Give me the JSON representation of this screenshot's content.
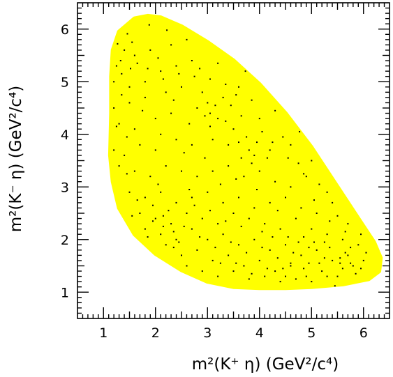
{
  "chart_data": {
    "type": "scatter",
    "xlabel": "m²(K⁺ η) (GeV²/c⁴)",
    "ylabel": "m²(K⁻ η) (GeV²/c⁴)",
    "xlim": [
      0.5,
      6.5
    ],
    "ylim": [
      0.5,
      6.5
    ],
    "xticks": [
      1,
      2,
      3,
      4,
      5,
      6
    ],
    "yticks": [
      1,
      2,
      3,
      4,
      5,
      6
    ],
    "grid": false,
    "colors": {
      "region": "#ffff00",
      "points": "#000000",
      "frame": "#000000"
    },
    "dalitz_boundary": [
      [
        1.13,
        3.6
      ],
      [
        1.15,
        4.4
      ],
      [
        1.15,
        5.1
      ],
      [
        1.18,
        5.6
      ],
      [
        1.3,
        5.95
      ],
      [
        1.6,
        6.2
      ],
      [
        1.85,
        6.25
      ],
      [
        2.1,
        6.22
      ],
      [
        2.5,
        6.05
      ],
      [
        3.0,
        5.75
      ],
      [
        3.5,
        5.4
      ],
      [
        4.0,
        4.95
      ],
      [
        4.5,
        4.4
      ],
      [
        5.0,
        3.75
      ],
      [
        5.5,
        3.0
      ],
      [
        5.9,
        2.4
      ],
      [
        6.2,
        1.95
      ],
      [
        6.33,
        1.65
      ],
      [
        6.3,
        1.4
      ],
      [
        6.1,
        1.25
      ],
      [
        5.6,
        1.15
      ],
      [
        5.0,
        1.1
      ],
      [
        4.5,
        1.08
      ],
      [
        4.0,
        1.08
      ],
      [
        3.5,
        1.1
      ],
      [
        3.0,
        1.2
      ],
      [
        2.5,
        1.42
      ],
      [
        2.0,
        1.73
      ],
      [
        1.6,
        2.1
      ],
      [
        1.3,
        2.6
      ],
      [
        1.18,
        3.1
      ]
    ],
    "points": [
      [
        1.27,
        5.72
      ],
      [
        1.46,
        5.91
      ],
      [
        1.88,
        6.08
      ],
      [
        2.22,
        5.98
      ],
      [
        1.33,
        5.4
      ],
      [
        1.52,
        5.25
      ],
      [
        1.4,
        5.6
      ],
      [
        1.6,
        5.5
      ],
      [
        1.9,
        5.6
      ],
      [
        2.3,
        5.7
      ],
      [
        2.6,
        5.8
      ],
      [
        1.2,
        5.0
      ],
      [
        1.5,
        4.9
      ],
      [
        1.8,
        5.0
      ],
      [
        2.1,
        5.2
      ],
      [
        2.4,
        5.3
      ],
      [
        2.7,
        5.4
      ],
      [
        3.2,
        5.35
      ],
      [
        3.73,
        5.2
      ],
      [
        1.2,
        4.5
      ],
      [
        1.5,
        4.6
      ],
      [
        1.8,
        4.7
      ],
      [
        2.2,
        4.8
      ],
      [
        2.5,
        4.9
      ],
      [
        2.9,
        4.8
      ],
      [
        3.3,
        4.7
      ],
      [
        3.6,
        4.9
      ],
      [
        1.3,
        4.2
      ],
      [
        1.6,
        4.1
      ],
      [
        2.0,
        4.3
      ],
      [
        2.3,
        4.4
      ],
      [
        2.8,
        4.5
      ],
      [
        3.0,
        4.6
      ],
      [
        3.05,
        4.4
      ],
      [
        3.2,
        4.3
      ],
      [
        3.5,
        4.1
      ],
      [
        4.0,
        4.3
      ],
      [
        4.3,
        4.45
      ],
      [
        4.77,
        4.05
      ],
      [
        1.2,
        3.7
      ],
      [
        1.4,
        3.6
      ],
      [
        1.7,
        3.8
      ],
      [
        2.0,
        3.7
      ],
      [
        2.1,
        4.0
      ],
      [
        2.4,
        3.9
      ],
      [
        2.7,
        3.8
      ],
      [
        3.1,
        3.9
      ],
      [
        3.4,
        3.8
      ],
      [
        3.6,
        3.85
      ],
      [
        3.8,
        3.7
      ],
      [
        3.9,
        3.6
      ],
      [
        4.2,
        3.7
      ],
      [
        4.6,
        3.8
      ],
      [
        5.0,
        3.5
      ],
      [
        1.3,
        3.4
      ],
      [
        1.6,
        3.3
      ],
      [
        1.9,
        3.2
      ],
      [
        2.2,
        3.4
      ],
      [
        2.5,
        3.3
      ],
      [
        2.8,
        3.2
      ],
      [
        3.1,
        3.3
      ],
      [
        3.4,
        3.4
      ],
      [
        3.7,
        3.2
      ],
      [
        4.0,
        3.3
      ],
      [
        4.3,
        3.1
      ],
      [
        4.6,
        3.0
      ],
      [
        4.9,
        3.2
      ],
      [
        5.3,
        2.9
      ],
      [
        1.5,
        2.9
      ],
      [
        1.8,
        2.8
      ],
      [
        2.1,
        2.9
      ],
      [
        2.4,
        2.7
      ],
      [
        2.7,
        2.8
      ],
      [
        3.0,
        2.9
      ],
      [
        3.3,
        2.7
      ],
      [
        3.6,
        2.8
      ],
      [
        3.9,
        2.6
      ],
      [
        4.2,
        2.7
      ],
      [
        4.5,
        2.8
      ],
      [
        4.8,
        2.6
      ],
      [
        5.1,
        2.5
      ],
      [
        5.4,
        2.7
      ],
      [
        5.7,
        2.3
      ],
      [
        1.7,
        2.5
      ],
      [
        2.0,
        2.4
      ],
      [
        2.3,
        2.3
      ],
      [
        2.6,
        2.5
      ],
      [
        2.9,
        2.4
      ],
      [
        3.2,
        2.3
      ],
      [
        3.5,
        2.5
      ],
      [
        3.8,
        2.4
      ],
      [
        4.1,
        2.3
      ],
      [
        4.4,
        2.2
      ],
      [
        4.7,
        2.4
      ],
      [
        5.0,
        2.2
      ],
      [
        5.3,
        2.1
      ],
      [
        5.6,
        2.0
      ],
      [
        5.9,
        1.9
      ],
      [
        1.8,
        2.2
      ],
      [
        2.1,
        2.1
      ],
      [
        2.4,
        2.0
      ],
      [
        2.7,
        2.2
      ],
      [
        3.0,
        2.0
      ],
      [
        3.3,
        2.1
      ],
      [
        3.6,
        1.9
      ],
      [
        3.9,
        2.0
      ],
      [
        4.2,
        1.8
      ],
      [
        4.5,
        1.9
      ],
      [
        4.8,
        1.7
      ],
      [
        5.1,
        1.8
      ],
      [
        5.4,
        1.6
      ],
      [
        5.7,
        1.7
      ],
      [
        6.0,
        1.6
      ],
      [
        2.2,
        1.9
      ],
      [
        2.5,
        1.7
      ],
      [
        2.8,
        1.8
      ],
      [
        3.1,
        1.6
      ],
      [
        3.4,
        1.7
      ],
      [
        3.7,
        1.5
      ],
      [
        4.0,
        1.6
      ],
      [
        4.3,
        1.4
      ],
      [
        4.6,
        1.5
      ],
      [
        4.9,
        1.3
      ],
      [
        5.2,
        1.4
      ],
      [
        5.5,
        1.3
      ],
      [
        5.8,
        1.5
      ],
      [
        2.6,
        1.5
      ],
      [
        2.9,
        1.4
      ],
      [
        3.2,
        1.3
      ],
      [
        3.5,
        1.4
      ],
      [
        3.8,
        1.25
      ],
      [
        4.1,
        1.3
      ],
      [
        4.4,
        1.2
      ],
      [
        4.7,
        1.25
      ],
      [
        5.0,
        1.2
      ],
      [
        5.3,
        1.3
      ],
      [
        5.6,
        1.45
      ],
      [
        4.5,
        1.3
      ],
      [
        5.45,
        1.12
      ],
      [
        4.6,
        1.55
      ],
      [
        1.25,
        5.3
      ],
      [
        1.35,
        5.15
      ],
      [
        2.05,
        5.45
      ],
      [
        2.75,
        5.1
      ],
      [
        2.35,
        4.65
      ],
      [
        2.65,
        4.2
      ],
      [
        3.45,
        4.55
      ],
      [
        3.85,
        4.65
      ],
      [
        4.45,
        3.95
      ],
      [
        4.15,
        3.55
      ],
      [
        4.75,
        3.45
      ],
      [
        5.15,
        3.05
      ],
      [
        5.5,
        2.45
      ],
      [
        5.95,
        2.1
      ],
      [
        1.45,
        3.95
      ],
      [
        1.75,
        4.45
      ],
      [
        2.55,
        3.65
      ],
      [
        2.95,
        3.55
      ],
      [
        3.25,
        3.05
      ],
      [
        3.55,
        3.15
      ],
      [
        3.95,
        2.95
      ],
      [
        4.35,
        2.55
      ],
      [
        4.85,
        2.05
      ],
      [
        5.25,
        1.95
      ],
      [
        5.75,
        1.85
      ],
      [
        6.05,
        1.75
      ],
      [
        1.95,
        2.65
      ],
      [
        2.25,
        2.55
      ],
      [
        2.55,
        2.25
      ],
      [
        2.85,
        2.05
      ],
      [
        3.15,
        1.85
      ],
      [
        3.45,
        1.95
      ],
      [
        3.75,
        1.75
      ],
      [
        4.05,
        1.85
      ],
      [
        4.35,
        1.65
      ],
      [
        4.65,
        1.75
      ],
      [
        4.95,
        1.55
      ],
      [
        5.25,
        1.65
      ],
      [
        5.55,
        1.55
      ],
      [
        5.85,
        1.35
      ],
      [
        3.05,
        4.15
      ],
      [
        3.15,
        4.55
      ],
      [
        2.95,
        4.35
      ],
      [
        3.35,
        4.25
      ],
      [
        3.75,
        3.95
      ],
      [
        3.95,
        3.85
      ],
      [
        3.65,
        3.55
      ],
      [
        3.85,
        3.45
      ],
      [
        2.05,
        3.05
      ],
      [
        2.15,
        2.45
      ],
      [
        2.35,
        2.15
      ],
      [
        2.45,
        1.95
      ],
      [
        2.35,
        1.85
      ],
      [
        2.15,
        2.25
      ],
      [
        1.95,
        2.35
      ],
      [
        1.85,
        2.05
      ],
      [
        4.95,
        1.85
      ],
      [
        5.05,
        1.95
      ],
      [
        5.35,
        1.85
      ],
      [
        5.65,
        1.75
      ],
      [
        5.75,
        1.55
      ],
      [
        5.55,
        1.65
      ],
      [
        5.95,
        1.45
      ],
      [
        1.55,
        5.75
      ],
      [
        1.65,
        5.35
      ],
      [
        1.85,
        5.25
      ],
      [
        2.15,
        5.05
      ],
      [
        2.45,
        5.15
      ],
      [
        2.85,
        5.25
      ],
      [
        3.05,
        5.05
      ],
      [
        3.35,
        4.95
      ],
      [
        3.55,
        4.75
      ],
      [
        3.65,
        4.35
      ],
      [
        4.05,
        4.05
      ],
      [
        4.25,
        3.85
      ],
      [
        4.55,
        3.55
      ],
      [
        4.85,
        3.25
      ],
      [
        5.05,
        2.75
      ],
      [
        5.35,
        2.35
      ],
      [
        5.65,
        2.15
      ],
      [
        1.35,
        4.75
      ],
      [
        1.25,
        4.15
      ],
      [
        1.45,
        3.25
      ],
      [
        1.65,
        2.75
      ],
      [
        1.55,
        2.45
      ],
      [
        2.65,
        2.95
      ],
      [
        2.75,
        2.65
      ],
      [
        3.05,
        2.55
      ],
      [
        3.35,
        2.35
      ],
      [
        3.65,
        2.25
      ],
      [
        4.05,
        2.15
      ],
      [
        4.25,
        2.05
      ],
      [
        4.55,
        2.05
      ],
      [
        4.75,
        1.95
      ],
      [
        3.25,
        1.55
      ],
      [
        3.55,
        1.55
      ],
      [
        3.85,
        1.35
      ],
      [
        4.15,
        1.45
      ],
      [
        4.45,
        1.45
      ],
      [
        4.85,
        1.45
      ],
      [
        5.15,
        1.55
      ]
    ]
  }
}
